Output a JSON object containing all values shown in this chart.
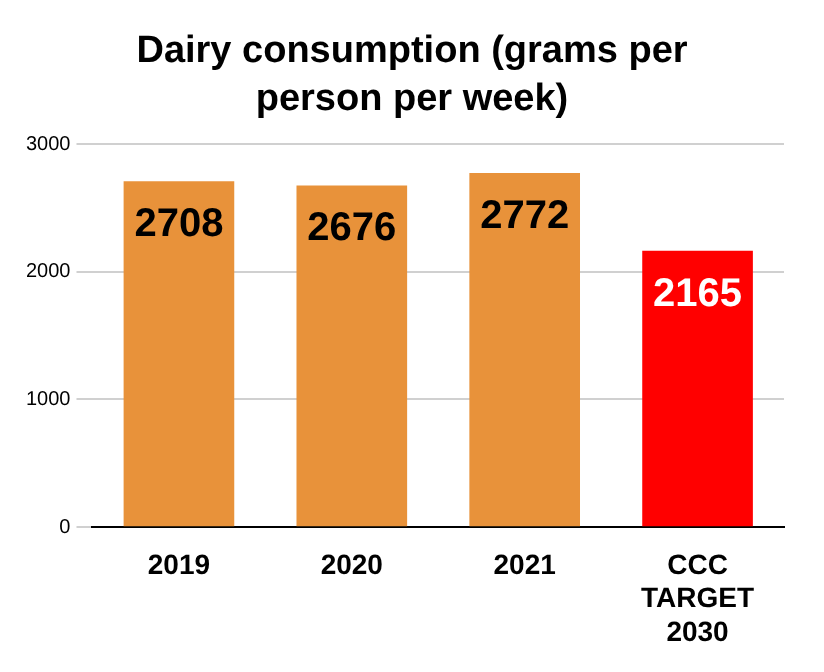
{
  "chart_data": {
    "type": "bar",
    "title": "Dairy consumption (grams per person per week)",
    "categories": [
      "2019",
      "2020",
      "2021",
      "CCC TARGET 2030"
    ],
    "values": [
      2708,
      2676,
      2772,
      2165
    ],
    "colors": [
      "#e8923a",
      "#e8923a",
      "#e8923a",
      "#ff0000"
    ],
    "ylim": [
      0,
      3000
    ],
    "yticks": [
      0,
      1000,
      2000,
      3000
    ],
    "grid": "y",
    "data_labels": true,
    "legend": false
  }
}
